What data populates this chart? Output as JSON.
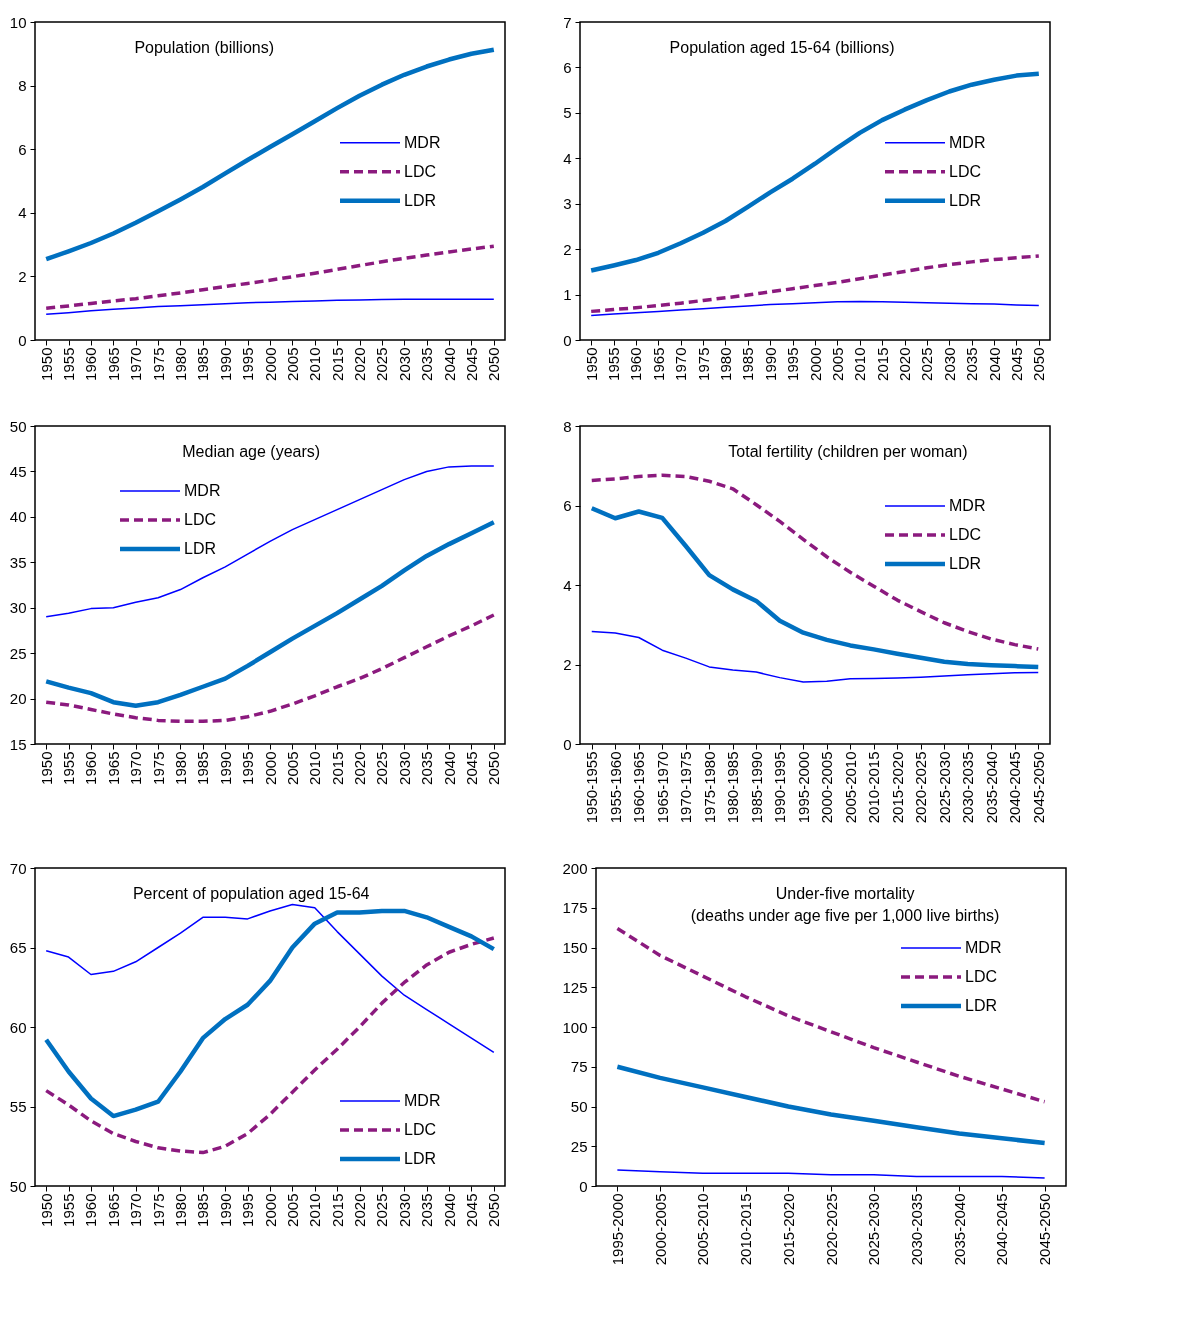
{
  "chart_data": [
    {
      "type": "line",
      "title": "Population (billions)",
      "categories": [
        "1950",
        "1955",
        "1960",
        "1965",
        "1970",
        "1975",
        "1980",
        "1985",
        "1990",
        "1995",
        "2000",
        "2005",
        "2010",
        "2015",
        "2020",
        "2025",
        "2030",
        "2035",
        "2040",
        "2045",
        "2050"
      ],
      "ylim": [
        0,
        10
      ],
      "yticks": [
        0,
        2,
        4,
        6,
        8,
        10
      ],
      "legend": "right",
      "series": [
        {
          "name": "MDR",
          "color": "#0000ff",
          "line_style": "solid",
          "values": [
            0.81,
            0.86,
            0.92,
            0.97,
            1.01,
            1.05,
            1.08,
            1.11,
            1.14,
            1.17,
            1.19,
            1.21,
            1.23,
            1.25,
            1.26,
            1.27,
            1.28,
            1.28,
            1.28,
            1.28,
            1.28
          ]
        },
        {
          "name": "LDC",
          "color": "#8b1a7e",
          "line_style": "dashed",
          "values": [
            1.0,
            1.07,
            1.15,
            1.23,
            1.3,
            1.39,
            1.48,
            1.58,
            1.68,
            1.78,
            1.88,
            1.99,
            2.1,
            2.22,
            2.34,
            2.46,
            2.57,
            2.67,
            2.77,
            2.86,
            2.95
          ]
        },
        {
          "name": "LDR",
          "color": "#0070c0",
          "line_style": "solid",
          "values": [
            2.54,
            2.79,
            3.05,
            3.35,
            3.69,
            4.05,
            4.42,
            4.81,
            5.24,
            5.66,
            6.07,
            6.47,
            6.88,
            7.29,
            7.68,
            8.03,
            8.34,
            8.6,
            8.82,
            9.0,
            9.13
          ]
        }
      ]
    },
    {
      "type": "line",
      "title": "Population aged 15-64 (billions)",
      "categories": [
        "1950",
        "1955",
        "1960",
        "1965",
        "1970",
        "1975",
        "1980",
        "1985",
        "1990",
        "1995",
        "2000",
        "2005",
        "2010",
        "2015",
        "2020",
        "2025",
        "2030",
        "2035",
        "2040",
        "2045",
        "2050"
      ],
      "ylim": [
        0,
        7
      ],
      "yticks": [
        0,
        1,
        2,
        3,
        4,
        5,
        6,
        7
      ],
      "legend": "right",
      "series": [
        {
          "name": "MDR",
          "color": "#0000ff",
          "line_style": "solid",
          "values": [
            0.54,
            0.57,
            0.6,
            0.63,
            0.66,
            0.69,
            0.72,
            0.75,
            0.78,
            0.8,
            0.82,
            0.84,
            0.85,
            0.84,
            0.83,
            0.82,
            0.81,
            0.8,
            0.79,
            0.77,
            0.76
          ]
        },
        {
          "name": "LDC",
          "color": "#8b1a7e",
          "line_style": "dashed",
          "values": [
            0.63,
            0.67,
            0.71,
            0.76,
            0.81,
            0.87,
            0.93,
            0.99,
            1.06,
            1.13,
            1.2,
            1.27,
            1.35,
            1.43,
            1.51,
            1.59,
            1.66,
            1.72,
            1.77,
            1.81,
            1.85
          ]
        },
        {
          "name": "LDR",
          "color": "#0070c0",
          "line_style": "solid",
          "values": [
            1.53,
            1.64,
            1.76,
            1.92,
            2.13,
            2.36,
            2.62,
            2.93,
            3.25,
            3.55,
            3.88,
            4.23,
            4.56,
            4.84,
            5.07,
            5.28,
            5.47,
            5.62,
            5.73,
            5.82,
            5.86
          ]
        }
      ]
    },
    {
      "type": "line",
      "title": "Median age (years)",
      "categories": [
        "1950",
        "1955",
        "1960",
        "1965",
        "1970",
        "1975",
        "1980",
        "1985",
        "1990",
        "1995",
        "2000",
        "2005",
        "2010",
        "2015",
        "2020",
        "2025",
        "2030",
        "2035",
        "2040",
        "2045",
        "2050"
      ],
      "ylim": [
        15,
        50
      ],
      "yticks": [
        15,
        20,
        25,
        30,
        35,
        40,
        45,
        50
      ],
      "legend": "top left",
      "series": [
        {
          "name": "MDR",
          "color": "#0000ff",
          "line_style": "solid",
          "values": [
            29.0,
            29.4,
            29.9,
            30.0,
            30.6,
            31.1,
            32.0,
            33.3,
            34.5,
            35.9,
            37.3,
            38.6,
            39.7,
            40.8,
            41.9,
            43.0,
            44.1,
            45.0,
            45.5,
            45.6,
            45.6
          ]
        },
        {
          "name": "LDC",
          "color": "#8b1a7e",
          "line_style": "dashed",
          "values": [
            19.6,
            19.3,
            18.8,
            18.3,
            17.9,
            17.6,
            17.5,
            17.5,
            17.6,
            18.0,
            18.6,
            19.4,
            20.3,
            21.3,
            22.2,
            23.3,
            24.5,
            25.7,
            26.9,
            28.0,
            29.2
          ]
        },
        {
          "name": "LDR",
          "color": "#0070c0",
          "line_style": "solid",
          "values": [
            21.9,
            21.2,
            20.6,
            19.6,
            19.2,
            19.6,
            20.4,
            21.3,
            22.2,
            23.6,
            25.1,
            26.6,
            28.0,
            29.4,
            30.9,
            32.4,
            34.1,
            35.7,
            37.0,
            38.2,
            39.4
          ]
        }
      ]
    },
    {
      "type": "line",
      "title": "Total fertility (children per woman)",
      "categories": [
        "1950-1955",
        "1955-1960",
        "1960-1965",
        "1965-1970",
        "1970-1975",
        "1975-1980",
        "1980-1985",
        "1985-1990",
        "1990-1995",
        "1995-2000",
        "2000-2005",
        "2005-2010",
        "2010-2015",
        "2015-2020",
        "2020-2025",
        "2025-2030",
        "2030-2035",
        "2035-2040",
        "2040-2045",
        "2045-2050"
      ],
      "ylim": [
        0,
        8
      ],
      "yticks": [
        0,
        2,
        4,
        6,
        8
      ],
      "legend": "top right",
      "series": [
        {
          "name": "MDR",
          "color": "#0000ff",
          "line_style": "solid",
          "values": [
            2.83,
            2.79,
            2.68,
            2.36,
            2.16,
            1.94,
            1.86,
            1.81,
            1.67,
            1.56,
            1.58,
            1.64,
            1.65,
            1.66,
            1.68,
            1.71,
            1.74,
            1.77,
            1.79,
            1.8
          ]
        },
        {
          "name": "LDC",
          "color": "#8b1a7e",
          "line_style": "dashed",
          "values": [
            6.63,
            6.67,
            6.73,
            6.76,
            6.73,
            6.61,
            6.42,
            6.02,
            5.6,
            5.15,
            4.71,
            4.32,
            3.97,
            3.62,
            3.33,
            3.05,
            2.83,
            2.64,
            2.5,
            2.39
          ]
        },
        {
          "name": "LDR",
          "color": "#0070c0",
          "line_style": "solid",
          "values": [
            5.93,
            5.68,
            5.85,
            5.69,
            4.98,
            4.25,
            3.89,
            3.6,
            3.1,
            2.8,
            2.62,
            2.48,
            2.38,
            2.27,
            2.17,
            2.07,
            2.01,
            1.98,
            1.96,
            1.94
          ]
        }
      ]
    },
    {
      "type": "line",
      "title": "Percent of population aged 15-64",
      "categories": [
        "1950",
        "1955",
        "1960",
        "1965",
        "1970",
        "1975",
        "1980",
        "1985",
        "1990",
        "1995",
        "2000",
        "2005",
        "2010",
        "2015",
        "2020",
        "2025",
        "2030",
        "2035",
        "2040",
        "2045",
        "2050"
      ],
      "ylim": [
        50,
        70
      ],
      "yticks": [
        50,
        55,
        60,
        65,
        70
      ],
      "legend": "bottom right",
      "series": [
        {
          "name": "MDR",
          "color": "#0000ff",
          "line_style": "solid",
          "values": [
            64.8,
            64.4,
            63.3,
            63.5,
            64.1,
            65.0,
            65.9,
            66.9,
            66.9,
            66.8,
            67.3,
            67.7,
            67.5,
            66.0,
            64.6,
            63.2,
            62.0,
            61.1,
            60.2,
            59.3,
            58.4
          ]
        },
        {
          "name": "LDC",
          "color": "#8b1a7e",
          "line_style": "dashed",
          "values": [
            56.0,
            55.1,
            54.1,
            53.3,
            52.8,
            52.4,
            52.2,
            52.1,
            52.5,
            53.3,
            54.5,
            55.9,
            57.3,
            58.6,
            60.0,
            61.5,
            62.8,
            63.9,
            64.7,
            65.2,
            65.6
          ]
        },
        {
          "name": "LDR",
          "color": "#0070c0",
          "line_style": "solid",
          "values": [
            59.2,
            57.2,
            55.5,
            54.4,
            54.8,
            55.3,
            57.2,
            59.3,
            60.5,
            61.4,
            62.9,
            65.0,
            66.5,
            67.2,
            67.2,
            67.3,
            67.3,
            66.9,
            66.3,
            65.7,
            64.9
          ]
        }
      ]
    },
    {
      "type": "line",
      "title": "Under-five mortality",
      "subtitle": "(deaths under age five per 1,000 live births)",
      "categories": [
        "1995-2000",
        "2000-2005",
        "2005-2010",
        "2010-2015",
        "2015-2020",
        "2020-2025",
        "2025-2030",
        "2030-2035",
        "2035-2040",
        "2040-2045",
        "2045-2050"
      ],
      "ylim": [
        0,
        200
      ],
      "yticks": [
        0,
        25,
        50,
        75,
        100,
        125,
        150,
        175,
        200
      ],
      "legend": "top right",
      "series": [
        {
          "name": "MDR",
          "color": "#0000ff",
          "line_style": "solid",
          "values": [
            10,
            9,
            8,
            8,
            8,
            7,
            7,
            6,
            6,
            6,
            5
          ]
        },
        {
          "name": "LDC",
          "color": "#8b1a7e",
          "line_style": "dashed",
          "values": [
            162,
            145,
            132,
            119,
            107,
            97,
            87,
            78,
            69,
            61,
            53
          ]
        },
        {
          "name": "LDR",
          "color": "#0070c0",
          "line_style": "solid",
          "values": [
            75,
            68,
            62,
            56,
            50,
            45,
            41,
            37,
            33,
            30,
            27
          ]
        }
      ]
    }
  ]
}
